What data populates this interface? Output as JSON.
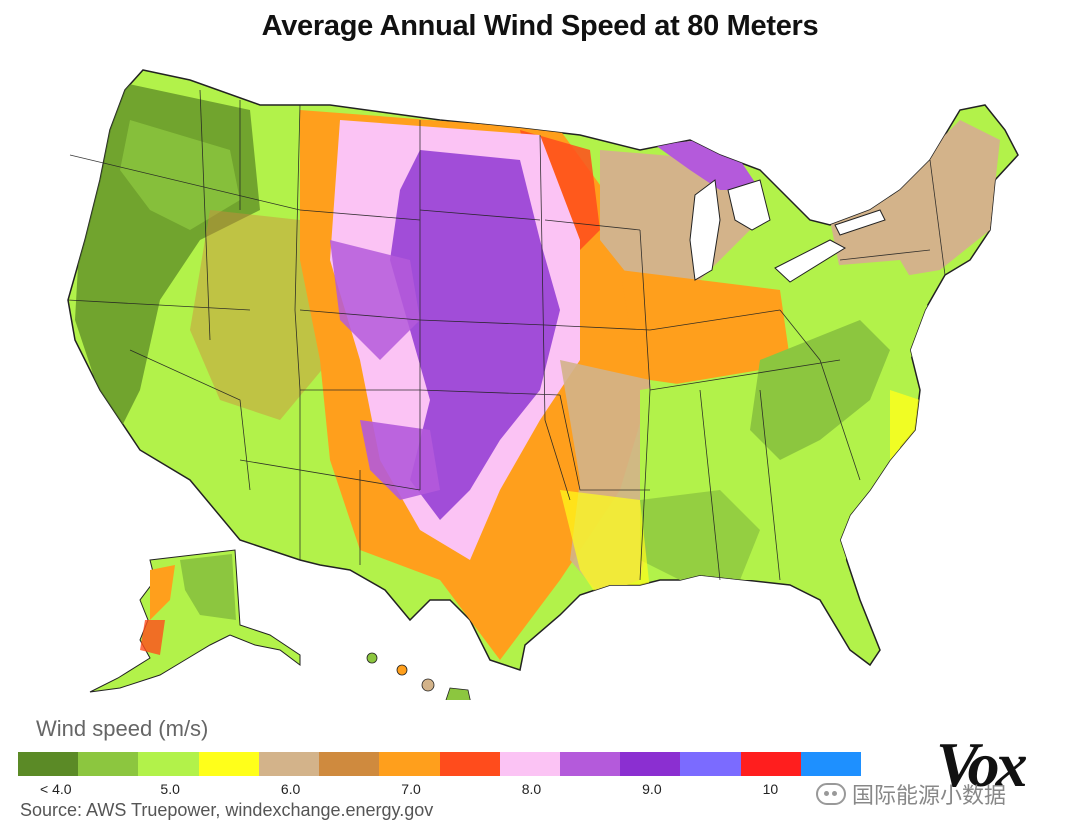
{
  "title": "Average Annual Wind Speed at 80 Meters",
  "legend": {
    "title": "Wind speed (m/s)",
    "colors": [
      "#5b8a26",
      "#8cc63f",
      "#b2f24a",
      "#ffff1a",
      "#d3b38a",
      "#cf8a3e",
      "#ff9f1c",
      "#ff4c1c",
      "#fbc3f4",
      "#b45adb",
      "#8b2fd1",
      "#7b6bff",
      "#ff1e1e",
      "#1e90ff"
    ],
    "labels": [
      {
        "text": "< 4.0",
        "index": 0
      },
      {
        "text": "5.0",
        "index": 2
      },
      {
        "text": "6.0",
        "index": 4
      },
      {
        "text": "7.0",
        "index": 6
      },
      {
        "text": "8.0",
        "index": 8
      },
      {
        "text": "9.0",
        "index": 10
      },
      {
        "text": "10",
        "index": 12
      }
    ]
  },
  "source": "Source: AWS Truepower, windexchange.energy.gov",
  "brand": "Vox",
  "watermark": "国际能源小数据",
  "map": {
    "regions": [
      "Contiguous United States",
      "Alaska",
      "Hawaii"
    ],
    "background_color": "#b2f24a",
    "border_color": "#222222",
    "zone_colors": {
      "pacific_forest": "#5b8a26",
      "plains_core": "#8b2fd1",
      "plains_light": "#fbc3f4",
      "plains_orange": "#ff9f1c",
      "plains_red": "#ff4c1c",
      "midwest_tan": "#d3b38a",
      "southeast_green": "#b2f24a",
      "appalachian": "#8cc63f",
      "coast_yellow": "#ffff1a",
      "great_lakes": "#b45adb",
      "rockies_tan": "#cf8a3e"
    }
  }
}
